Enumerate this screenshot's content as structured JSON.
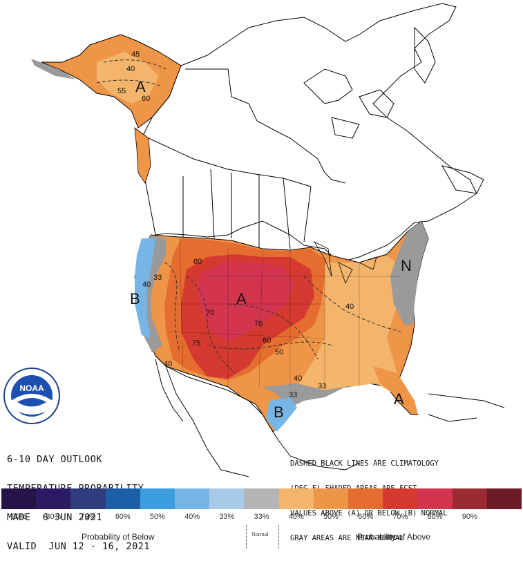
{
  "outlook": {
    "line1": "6-10 DAY OUTLOOK",
    "line2": "TEMPERATURE PROBABILITY",
    "line3": "MADE  6 JUN 2021",
    "line4": "VALID  JUN 12 - 16, 2021"
  },
  "legend_note": {
    "line1": "DASHED BLACK LINES ARE CLIMATOLOGY",
    "line2": "(DEG F) SHADED AREAS ARE FCST",
    "line3": "VALUES ABOVE (A) OR BELOW (B) NORMAL",
    "line4": "GRAY AREAS ARE NEAR-NORMAL"
  },
  "logo": {
    "text": "NOAA"
  },
  "map_labels": {
    "alaska_a": "A",
    "west_b": "B",
    "central_a": "A",
    "east_n": "N",
    "florida_a": "A",
    "texas_b": "B"
  },
  "contour_labels": {
    "ak_45": "45",
    "ak_40": "40",
    "ak_55": "55",
    "ak_60": "60",
    "w_40": "40",
    "w_33": "33",
    "c_60": "60",
    "c_70a": "70",
    "c_70b": "70",
    "c_60b": "60",
    "c_50": "50",
    "c_75": "75",
    "e_40": "40",
    "s_33": "33",
    "s_33b": "33",
    "s_40": "40",
    "sw_40": "40"
  },
  "colorbar": {
    "colors": [
      "#241447",
      "#2c1a63",
      "#2f3d7c",
      "#1c5fa6",
      "#3b9de0",
      "#77b5e6",
      "#a8c9e8",
      "#b4b4b4",
      "#f2b56b",
      "#ef9548",
      "#e56d2f",
      "#d43a2f",
      "#d3354f",
      "#9b2a32",
      "#6b1b26"
    ],
    "ticks": [
      "90%",
      "80%",
      "70%",
      "60%",
      "50%",
      "40%",
      "33%",
      "33%",
      "40%",
      "50%",
      "60%",
      "70%",
      "80%",
      "90%",
      ""
    ]
  },
  "labels": {
    "below": "Probability of Below",
    "normal": "Normal",
    "above": "Probability of Above"
  },
  "colors": {
    "above33": "#f2b56b",
    "above40": "#ef9548",
    "above50": "#e56d2f",
    "above60": "#d43a2f",
    "above70": "#d3354f",
    "near_normal": "#9a9a9a",
    "below33": "#a8c9e8",
    "below40": "#77b5e6"
  }
}
